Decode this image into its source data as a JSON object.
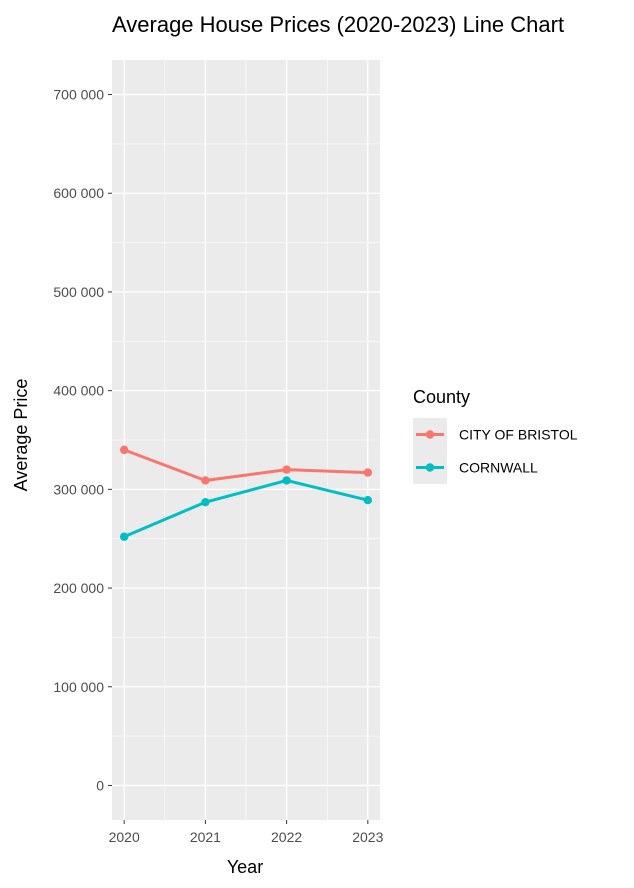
{
  "chart_data": {
    "type": "line",
    "title": "Average House Prices (2020-2023) Line Chart",
    "xlabel": "Year",
    "ylabel": "Average Price",
    "categories": [
      "2020",
      "2021",
      "2022",
      "2023"
    ],
    "x": [
      2020,
      2021,
      2022,
      2023
    ],
    "ylim": [
      -35000,
      735000
    ],
    "yticks": [
      0,
      100000,
      200000,
      300000,
      400000,
      500000,
      600000,
      700000
    ],
    "ytick_labels": [
      "0",
      "100 000",
      "200 000",
      "300 000",
      "400 000",
      "500 000",
      "600 000",
      "700 000"
    ],
    "grid": true,
    "legend_title": "County",
    "legend_position": "right",
    "series": [
      {
        "name": "CITY OF BRISTOL",
        "color": "#F8766D",
        "values": [
          340000,
          309000,
          320000,
          317000
        ]
      },
      {
        "name": "CORNWALL",
        "color": "#00BFC4",
        "values": [
          252000,
          287000,
          309000,
          289000
        ]
      }
    ],
    "panel_background": "#EBEBEB",
    "gridline_color": "#FFFFFF"
  }
}
